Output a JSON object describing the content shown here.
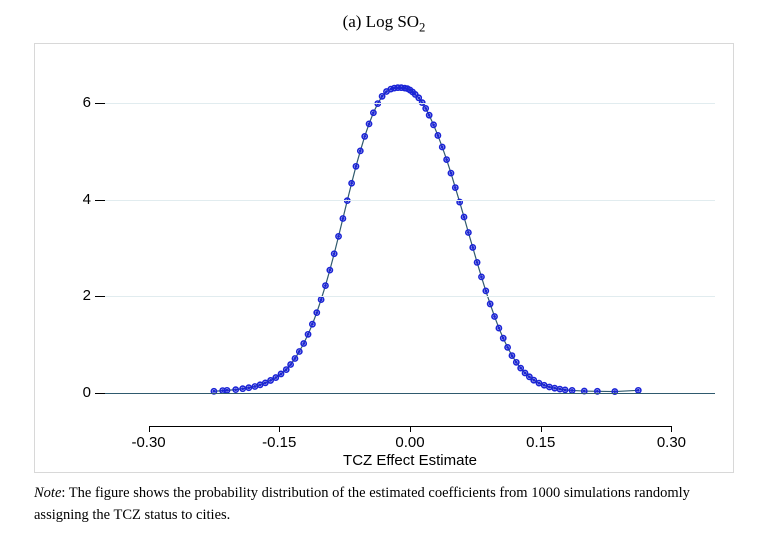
{
  "title": {
    "prefix": "(a) Log SO",
    "subscript": "2"
  },
  "chart": {
    "type": "line-with-markers",
    "background_color": "#ffffff",
    "frame_border_color": "#d8d8d8",
    "grid_color": "#e1ecef",
    "baseline_color": "#2f5a6e",
    "axis_color": "#000000",
    "line_color": "#2f5a6e",
    "marker_color": "#1b24d6",
    "marker_stroke": "#1b24d6",
    "marker_radius": 2.6,
    "line_width": 1.2,
    "xlabel": "TCZ Effect Estimate",
    "label_fontsize": 15,
    "tick_fontsize": 15,
    "xlim": [
      -0.35,
      0.35
    ],
    "ylim": [
      -0.45,
      6.8
    ],
    "yticks": [
      0,
      2,
      4,
      6
    ],
    "xticks": [
      -0.3,
      -0.15,
      0.0,
      0.15,
      0.3
    ],
    "xtick_labels": [
      "-0.30",
      "-0.15",
      "0.00",
      "0.15",
      "0.30"
    ],
    "series": {
      "x": [
        -0.225,
        -0.215,
        -0.21,
        -0.2,
        -0.192,
        -0.185,
        -0.178,
        -0.172,
        -0.166,
        -0.16,
        -0.154,
        -0.148,
        -0.142,
        -0.137,
        -0.132,
        -0.127,
        -0.122,
        -0.117,
        -0.112,
        -0.107,
        -0.102,
        -0.097,
        -0.092,
        -0.087,
        -0.082,
        -0.077,
        -0.072,
        -0.067,
        -0.062,
        -0.057,
        -0.052,
        -0.047,
        -0.042,
        -0.037,
        -0.032,
        -0.027,
        -0.022,
        -0.018,
        -0.014,
        -0.01,
        -0.006,
        -0.003,
        0.0,
        0.003,
        0.006,
        0.01,
        0.014,
        0.018,
        0.022,
        0.027,
        0.032,
        0.037,
        0.042,
        0.047,
        0.052,
        0.057,
        0.062,
        0.067,
        0.072,
        0.077,
        0.082,
        0.087,
        0.092,
        0.097,
        0.102,
        0.107,
        0.112,
        0.117,
        0.122,
        0.127,
        0.132,
        0.137,
        0.142,
        0.148,
        0.154,
        0.16,
        0.166,
        0.172,
        0.178,
        0.186,
        0.2,
        0.215,
        0.235,
        0.262
      ],
      "y": [
        0.02,
        0.035,
        0.04,
        0.055,
        0.075,
        0.095,
        0.12,
        0.155,
        0.195,
        0.245,
        0.305,
        0.38,
        0.47,
        0.575,
        0.7,
        0.845,
        1.01,
        1.2,
        1.41,
        1.65,
        1.92,
        2.21,
        2.53,
        2.87,
        3.23,
        3.6,
        3.97,
        4.33,
        4.68,
        5.0,
        5.3,
        5.56,
        5.79,
        5.98,
        6.13,
        6.23,
        6.28,
        6.3,
        6.31,
        6.31,
        6.3,
        6.29,
        6.26,
        6.22,
        6.17,
        6.1,
        6.0,
        5.88,
        5.74,
        5.54,
        5.32,
        5.08,
        4.82,
        4.54,
        4.24,
        3.94,
        3.63,
        3.31,
        3.0,
        2.69,
        2.39,
        2.1,
        1.83,
        1.57,
        1.33,
        1.12,
        0.93,
        0.76,
        0.62,
        0.5,
        0.4,
        0.32,
        0.25,
        0.19,
        0.145,
        0.11,
        0.085,
        0.065,
        0.05,
        0.038,
        0.025,
        0.02,
        0.015,
        0.04
      ]
    }
  },
  "note": {
    "lead": "Note",
    "body": ": The figure shows the probability distribution of the estimated coefficients from 1000 simulations randomly assigning the TCZ status to cities."
  }
}
